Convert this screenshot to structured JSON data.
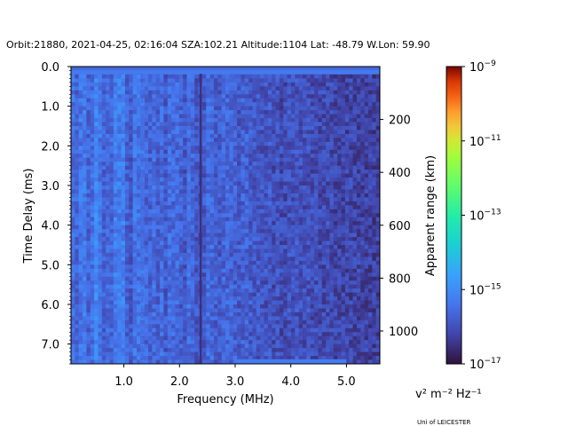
{
  "chart_data": {
    "type": "heatmap",
    "title": "Orbit:21880, 2021-04-25, 02:16:04 SZA:102.21 Altitude:1104 Lat: -48.79 W.Lon: 59.90",
    "xlabel": "Frequency (MHz)",
    "ylabel": "Time Delay (ms)",
    "y2label": "Apparent range (km)",
    "xlim": [
      0.05,
      5.6
    ],
    "ylim": [
      7.5,
      0.0
    ],
    "x_ticks": [
      1.0,
      2.0,
      3.0,
      4.0,
      5.0
    ],
    "x_tick_labels": [
      "1.0",
      "2.0",
      "3.0",
      "4.0",
      "5.0"
    ],
    "y_ticks": [
      0.0,
      1.0,
      2.0,
      3.0,
      4.0,
      5.0,
      6.0,
      7.0
    ],
    "y_tick_labels": [
      "0.0",
      "1.0",
      "2.0",
      "3.0",
      "4.0",
      "5.0",
      "6.0",
      "7.0"
    ],
    "range_ticks_km": [
      200,
      400,
      600,
      800,
      1000
    ],
    "range_tick_labels": [
      "200",
      "400",
      "600",
      "800",
      "1000"
    ],
    "km_per_ms": 149.9,
    "colorbar": {
      "scale": "log",
      "min": 1e-17,
      "max": 1e-09,
      "colormap": "turbo",
      "ticks": [
        {
          "base": "10",
          "exp": "−9",
          "value": 1e-09
        },
        {
          "base": "10",
          "exp": "−11",
          "value": 1e-11
        },
        {
          "base": "10",
          "exp": "−13",
          "value": 1e-13
        },
        {
          "base": "10",
          "exp": "−15",
          "value": 1e-15
        },
        {
          "base": "10",
          "exp": "−17",
          "value": 1e-17
        }
      ],
      "units": "v² m⁻² Hz⁻¹"
    },
    "grid": false,
    "features": [
      {
        "desc": "bright band at top row",
        "time_ms": 0.15,
        "freq_range_mhz": [
          0.05,
          5.6
        ],
        "level": 5e-16
      },
      {
        "desc": "bright band at bottom row",
        "time_ms": 7.45,
        "freq_range_mhz": [
          3.0,
          5.0
        ],
        "level": 5e-16
      },
      {
        "desc": "dashed bright vertical line",
        "freq_mhz": 1.33,
        "level": 3e-16
      },
      {
        "desc": "dark vertical line",
        "freq_mhz": 2.38,
        "level": 3e-17
      }
    ]
  },
  "credit": "Uni of LEICESTER"
}
